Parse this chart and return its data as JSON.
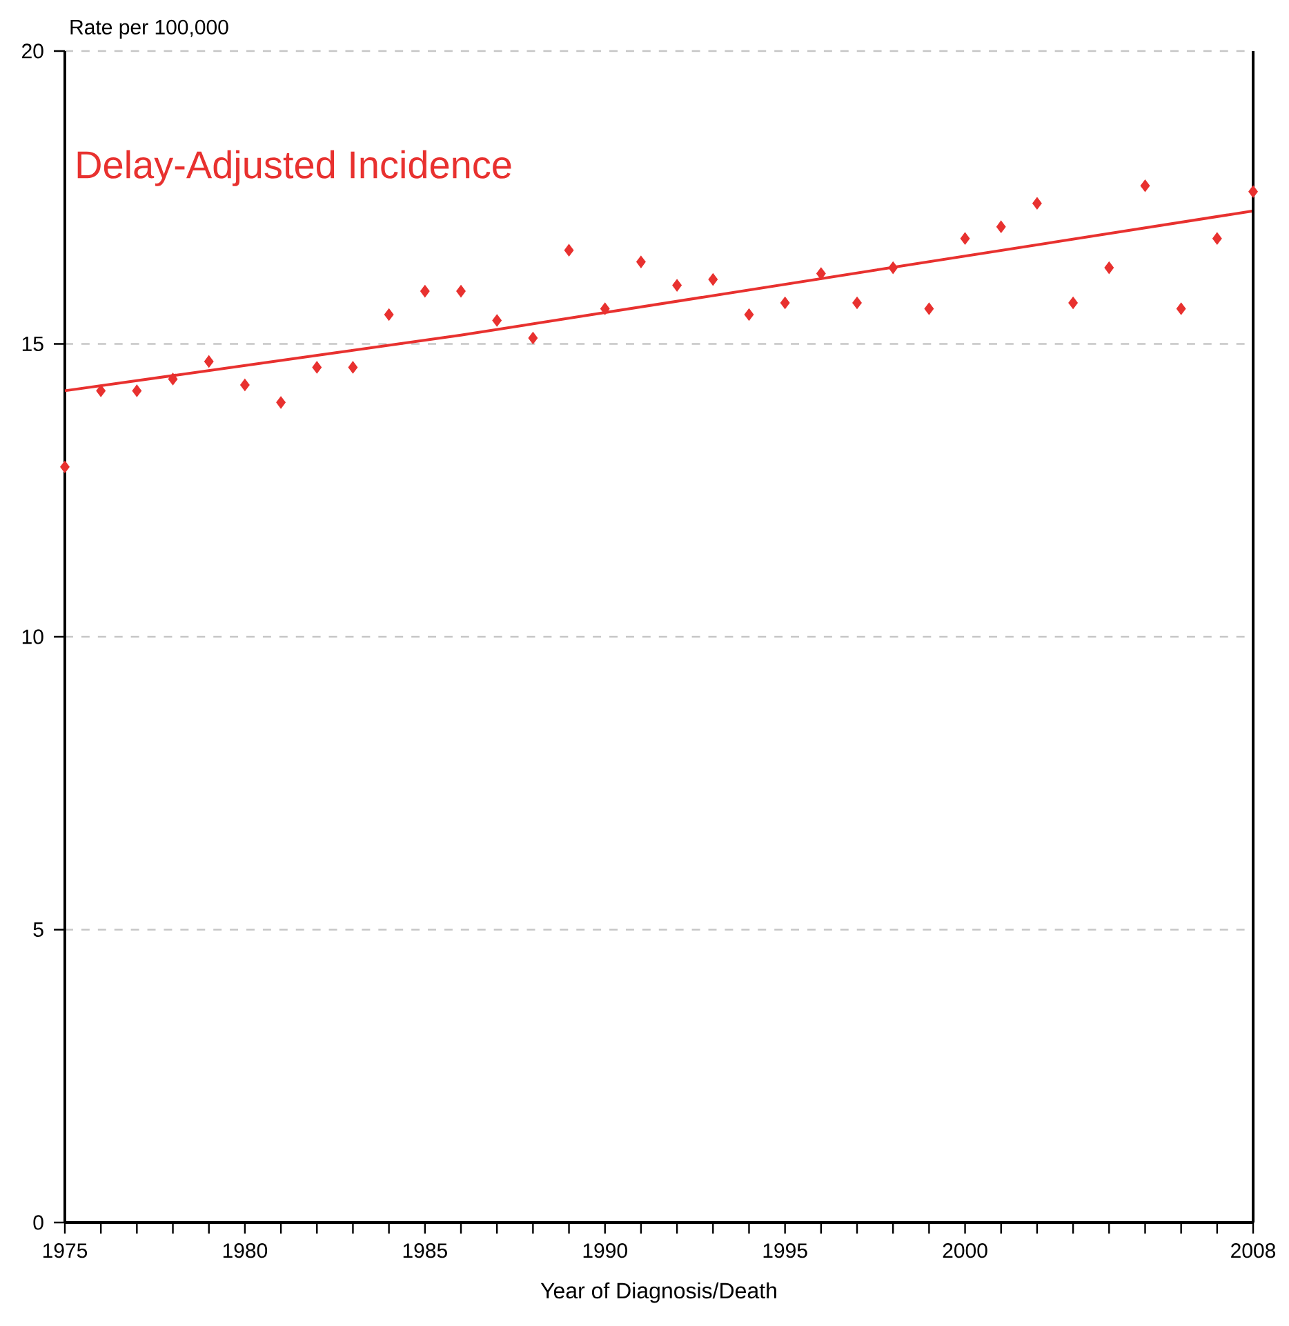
{
  "chart_data": {
    "type": "scatter",
    "xlabel": "Year of Diagnosis/Death",
    "ylabel": "Rate per 100,000",
    "x": [
      1975,
      1976,
      1977,
      1978,
      1979,
      1980,
      1981,
      1982,
      1983,
      1984,
      1985,
      1986,
      1987,
      1988,
      1989,
      1990,
      1991,
      1992,
      1993,
      1994,
      1995,
      1996,
      1997,
      1998,
      1999,
      2000,
      2001,
      2002,
      2003,
      2004,
      2005,
      2006,
      2007,
      2008
    ],
    "series": [
      {
        "name": "Delay-Adjusted Incidence",
        "marker": "diamond",
        "color": "#e8312f",
        "values": [
          12.9,
          14.2,
          14.2,
          14.4,
          14.7,
          14.3,
          14.0,
          14.6,
          14.6,
          15.5,
          15.9,
          15.9,
          15.4,
          15.1,
          16.6,
          15.6,
          16.4,
          16.0,
          16.1,
          15.5,
          15.7,
          16.2,
          15.7,
          16.3,
          15.6,
          16.8,
          17.0,
          17.4,
          15.7,
          16.3,
          17.7,
          15.6,
          16.8,
          17.6
        ]
      },
      {
        "type": "line",
        "marker": "none",
        "color": "#e8312f",
        "x": [
          1975,
          1986,
          2008
        ],
        "values": [
          14.2,
          15.15,
          17.27
        ]
      }
    ],
    "xlim": [
      1975,
      2008
    ],
    "ylim": [
      0,
      20
    ],
    "xticks": [
      1975,
      {
        "value": 1976,
        "label": null
      },
      {
        "value": 1977,
        "label": null
      },
      {
        "value": 1978,
        "label": null
      },
      {
        "value": 1979,
        "label": null
      },
      1980,
      {
        "value": 1981,
        "label": null
      },
      {
        "value": 1982,
        "label": null
      },
      {
        "value": 1983,
        "label": null
      },
      {
        "value": 1984,
        "label": null
      },
      1985,
      {
        "value": 1986,
        "label": null
      },
      {
        "value": 1987,
        "label": null
      },
      {
        "value": 1988,
        "label": null
      },
      {
        "value": 1989,
        "label": null
      },
      1990,
      {
        "value": 1991,
        "label": null
      },
      {
        "value": 1992,
        "label": null
      },
      {
        "value": 1993,
        "label": null
      },
      {
        "value": 1994,
        "label": null
      },
      1995,
      {
        "value": 1996,
        "label": null
      },
      {
        "value": 1997,
        "label": null
      },
      {
        "value": 1998,
        "label": null
      },
      {
        "value": 1999,
        "label": null
      },
      2000,
      {
        "value": 2001,
        "label": null
      },
      {
        "value": 2002,
        "label": null
      },
      {
        "value": 2003,
        "label": null
      },
      {
        "value": 2004,
        "label": null
      },
      {
        "value": 2005,
        "label": null
      },
      {
        "value": 2006,
        "label": null
      },
      {
        "value": 2007,
        "label": null
      },
      2008
    ],
    "yticks": [
      0,
      5,
      10,
      15,
      20
    ],
    "grid": "y"
  }
}
